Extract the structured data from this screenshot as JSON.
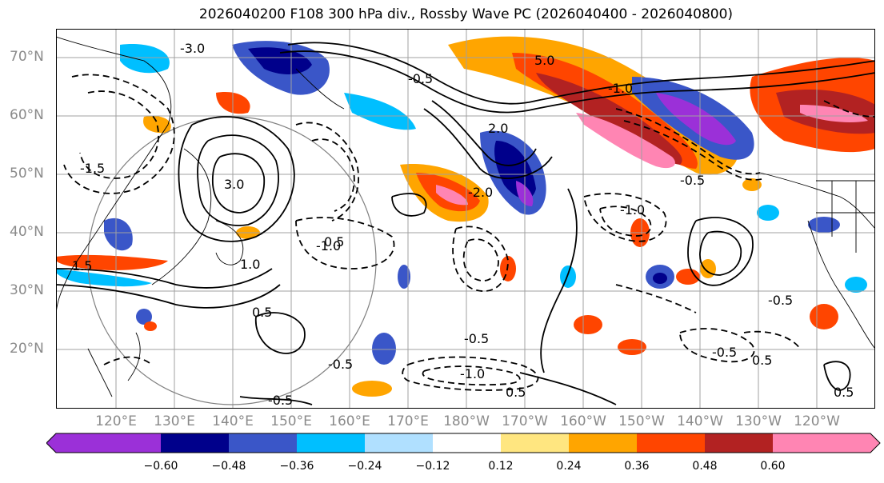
{
  "title": "2026040200 F108 300 hPa div., Rossby Wave PC (2026040400 - 2026040800)",
  "lat_labels": [
    "70°N",
    "60°N",
    "50°N",
    "40°N",
    "30°N",
    "20°N"
  ],
  "lon_labels": [
    "120°E",
    "130°E",
    "140°E",
    "150°E",
    "160°E",
    "170°E",
    "180°W",
    "170°W",
    "160°W",
    "150°W",
    "140°W",
    "130°W",
    "120°W"
  ],
  "contour_labels": [
    "-0.5",
    "-1.0",
    "-1.5",
    "-2.0",
    "-3.0",
    "0.5",
    "1.0",
    "1.5",
    "2.0",
    "3.0",
    "5.0"
  ],
  "colorbar": {
    "tick_labels": [
      "−0.60",
      "−0.48",
      "−0.36",
      "−0.24",
      "−0.12",
      "0.12",
      "0.24",
      "0.36",
      "0.48",
      "0.60"
    ],
    "colors": [
      "#9b30d8",
      "#00008b",
      "#3a56c8",
      "#00bfff",
      "#b0e0ff",
      "#ffffff",
      "#ffe680",
      "#ffa500",
      "#ff4500",
      "#b22222",
      "#ff85b3"
    ]
  }
}
